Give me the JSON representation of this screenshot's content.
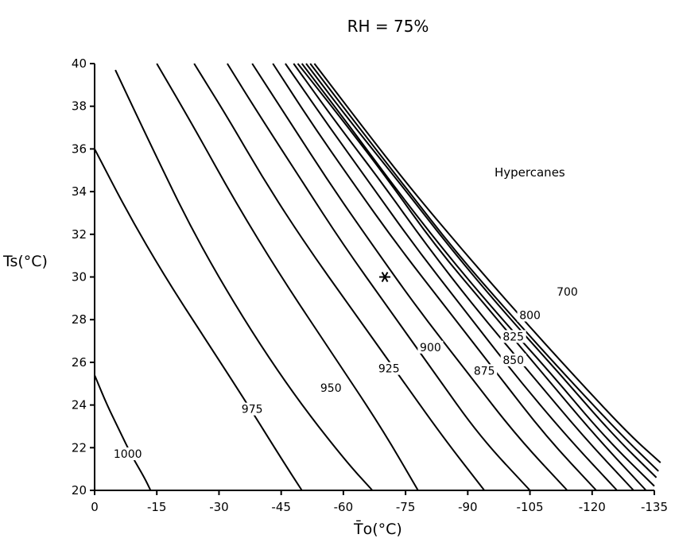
{
  "chart_data": {
    "type": "line",
    "title": "RH = 75%",
    "xlabel": "T̄o(°C)",
    "ylabel": "Ts(°C)",
    "xlim": [
      0,
      -135
    ],
    "ylim": [
      20,
      40
    ],
    "xticks": [
      0,
      -15,
      -30,
      -45,
      -60,
      -75,
      -90,
      -105,
      -120,
      -135
    ],
    "xtick_labels": [
      "0",
      "-15",
      "-30",
      "-45",
      "-60",
      "-75",
      "-90",
      "-105",
      "-120",
      "-135"
    ],
    "yticks": [
      20,
      22,
      24,
      26,
      28,
      30,
      32,
      34,
      36,
      38,
      40
    ],
    "ytick_labels": [
      "20",
      "22",
      "24",
      "26",
      "28",
      "30",
      "32",
      "34",
      "36",
      "38",
      "40"
    ],
    "grid": false,
    "annotation": "Hypercanes",
    "marker": {
      "symbol": "*",
      "x": -70,
      "y": 30
    },
    "series": [
      {
        "name": "1000",
        "label_at": {
          "x": -8,
          "y": 21.6
        },
        "points": [
          [
            0,
            25.4
          ],
          [
            -3,
            24.0
          ],
          [
            -6,
            22.8
          ],
          [
            -9,
            21.6
          ],
          [
            -12,
            20.6
          ],
          [
            -13.5,
            20.0
          ]
        ]
      },
      {
        "name": "unlabeled",
        "points": [
          [
            0,
            36.0
          ],
          [
            -8,
            33.0
          ],
          [
            -17,
            30.0
          ],
          [
            -27,
            27.0
          ],
          [
            -37,
            24.0
          ],
          [
            -45,
            21.5
          ],
          [
            -50,
            20.0
          ]
        ]
      },
      {
        "name": "975",
        "label_at": {
          "x": -38,
          "y": 23.7
        },
        "points": [
          [
            -5,
            39.7
          ],
          [
            -14,
            36.0
          ],
          [
            -24,
            32.0
          ],
          [
            -36,
            28.0
          ],
          [
            -48,
            24.5
          ],
          [
            -60,
            21.5
          ],
          [
            -67,
            20.0
          ]
        ]
      },
      {
        "name": "unlabeled",
        "points": [
          [
            -15,
            40.0
          ],
          [
            -24,
            37.0
          ],
          [
            -34,
            33.5
          ],
          [
            -45,
            30.0
          ],
          [
            -57,
            26.5
          ],
          [
            -69,
            23.0
          ],
          [
            -78,
            20.0
          ]
        ]
      },
      {
        "name": "950",
        "label_at": {
          "x": -57,
          "y": 24.7
        },
        "points": [
          [
            -24,
            40.0
          ],
          [
            -32,
            37.5
          ],
          [
            -41,
            34.5
          ],
          [
            -51,
            31.5
          ],
          [
            -62,
            28.5
          ],
          [
            -73,
            25.5
          ],
          [
            -84,
            22.5
          ],
          [
            -94,
            20.0
          ]
        ]
      },
      {
        "name": "925",
        "label_at": {
          "x": -71,
          "y": 25.6
        },
        "points": [
          [
            -32,
            40.0
          ],
          [
            -40,
            37.5
          ],
          [
            -50,
            34.5
          ],
          [
            -60,
            31.5
          ],
          [
            -71,
            28.5
          ],
          [
            -82,
            25.5
          ],
          [
            -93,
            22.5
          ],
          [
            -105,
            20.0
          ]
        ]
      },
      {
        "name": "900",
        "label_at": {
          "x": -81,
          "y": 26.6
        },
        "points": [
          [
            -38,
            40.0
          ],
          [
            -47,
            37.3
          ],
          [
            -57,
            34.3
          ],
          [
            -67,
            31.5
          ],
          [
            -78,
            28.5
          ],
          [
            -90,
            25.5
          ],
          [
            -102,
            22.5
          ],
          [
            -114,
            20.0
          ]
        ]
      },
      {
        "name": "875",
        "label_at": {
          "x": -94,
          "y": 25.5
        },
        "points": [
          [
            -43,
            40.0
          ],
          [
            -52,
            37.3
          ],
          [
            -62,
            34.5
          ],
          [
            -73,
            31.5
          ],
          [
            -85,
            28.5
          ],
          [
            -97,
            25.5
          ],
          [
            -109,
            22.5
          ],
          [
            -121,
            20.0
          ]
        ]
      },
      {
        "name": "850",
        "label_at": {
          "x": -101,
          "y": 26.0
        },
        "points": [
          [
            -46,
            40.0
          ],
          [
            -56,
            37.2
          ],
          [
            -66,
            34.5
          ],
          [
            -77,
            31.5
          ],
          [
            -89,
            28.5
          ],
          [
            -101,
            25.5
          ],
          [
            -114,
            22.5
          ],
          [
            -126,
            20.0
          ]
        ]
      },
      {
        "name": "825",
        "label_at": {
          "x": -101,
          "y": 27.1
        },
        "points": [
          [
            -48,
            40.0
          ],
          [
            -58,
            37.3
          ],
          [
            -69,
            34.5
          ],
          [
            -80,
            31.5
          ],
          [
            -92,
            28.5
          ],
          [
            -105,
            25.5
          ],
          [
            -118,
            22.5
          ],
          [
            -130,
            20.0
          ]
        ]
      },
      {
        "name": "800",
        "label_at": {
          "x": -105,
          "y": 28.1
        },
        "points": [
          [
            -49,
            40.0
          ],
          [
            -60,
            37.3
          ],
          [
            -71,
            34.5
          ],
          [
            -82,
            31.5
          ],
          [
            -95,
            28.5
          ],
          [
            -108,
            25.5
          ],
          [
            -121,
            22.5
          ],
          [
            -133,
            20.0
          ]
        ]
      },
      {
        "name": "unlabeled",
        "points": [
          [
            -50,
            40.0
          ],
          [
            -61,
            37.2
          ],
          [
            -72,
            34.3
          ],
          [
            -84,
            31.3
          ],
          [
            -97,
            28.3
          ],
          [
            -110,
            25.5
          ],
          [
            -123,
            22.5
          ],
          [
            -135,
            20.2
          ]
        ]
      },
      {
        "name": "unlabeled",
        "points": [
          [
            -51,
            40.0
          ],
          [
            -62,
            37.2
          ],
          [
            -74,
            34.3
          ],
          [
            -86,
            31.3
          ],
          [
            -99,
            28.3
          ],
          [
            -112,
            25.5
          ],
          [
            -125,
            22.6
          ],
          [
            -135.5,
            20.6
          ]
        ]
      },
      {
        "name": "700",
        "label_at": {
          "x": -114,
          "y": 29.2
        },
        "points": [
          [
            -52,
            40.0
          ],
          [
            -63,
            37.2
          ],
          [
            -75,
            34.2
          ],
          [
            -87,
            31.2
          ],
          [
            -100,
            28.3
          ],
          [
            -114,
            25.3
          ],
          [
            -127,
            22.6
          ],
          [
            -136,
            20.9
          ]
        ]
      },
      {
        "name": "unlabeled",
        "points": [
          [
            -53,
            40.0
          ],
          [
            -64,
            37.2
          ],
          [
            -76,
            34.2
          ],
          [
            -89,
            31.2
          ],
          [
            -102,
            28.3
          ],
          [
            -116,
            25.3
          ],
          [
            -129,
            22.6
          ],
          [
            -136.5,
            21.3
          ]
        ]
      }
    ]
  }
}
